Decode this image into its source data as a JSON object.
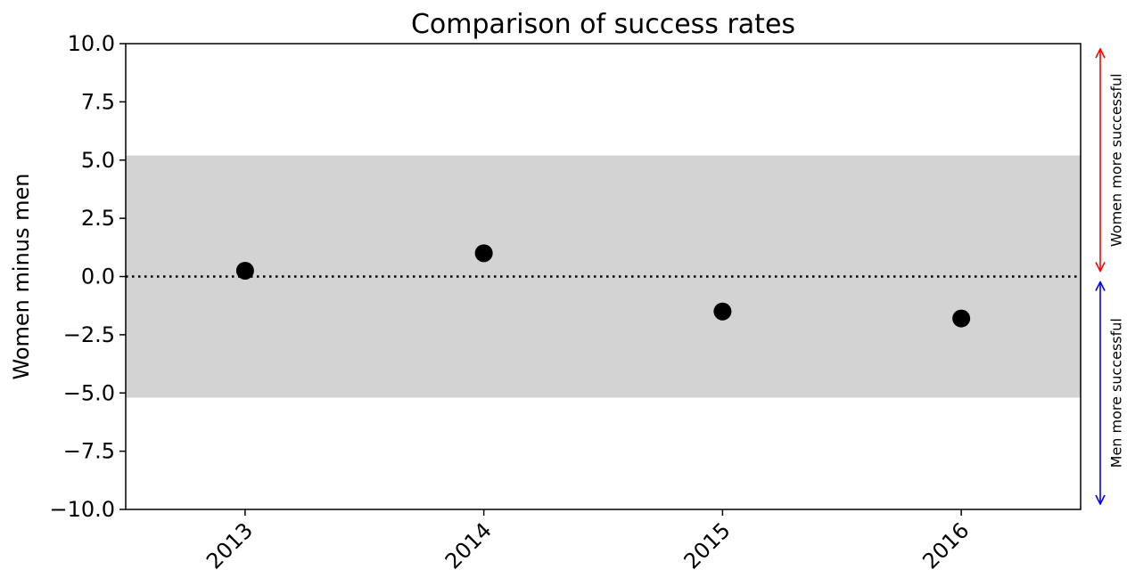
{
  "chart_data": {
    "type": "scatter",
    "title": "Comparison of success rates",
    "xlabel": "",
    "ylabel": "Women minus men",
    "categories": [
      "2013",
      "2014",
      "2015",
      "2016"
    ],
    "values": [
      0.25,
      1.0,
      -1.5,
      -1.8
    ],
    "ylim": [
      -10,
      10
    ],
    "yticks": [
      "10.0",
      "7.5",
      "5.0",
      "2.5",
      "0.0",
      "−2.5",
      "−5.0",
      "−7.5",
      "−10.0"
    ],
    "ytick_values": [
      10,
      7.5,
      5,
      2.5,
      0,
      -2.5,
      -5,
      -7.5,
      -10
    ],
    "band": [
      -5.2,
      5.2
    ],
    "reference_line": 0,
    "grid": false,
    "colors": {
      "points": "#000000",
      "band": "#d3d3d3",
      "women_arrow": "#ff0000",
      "men_arrow": "#0000ff"
    },
    "annotations": {
      "upper": "Women more successful",
      "lower": "Men more successful"
    }
  }
}
